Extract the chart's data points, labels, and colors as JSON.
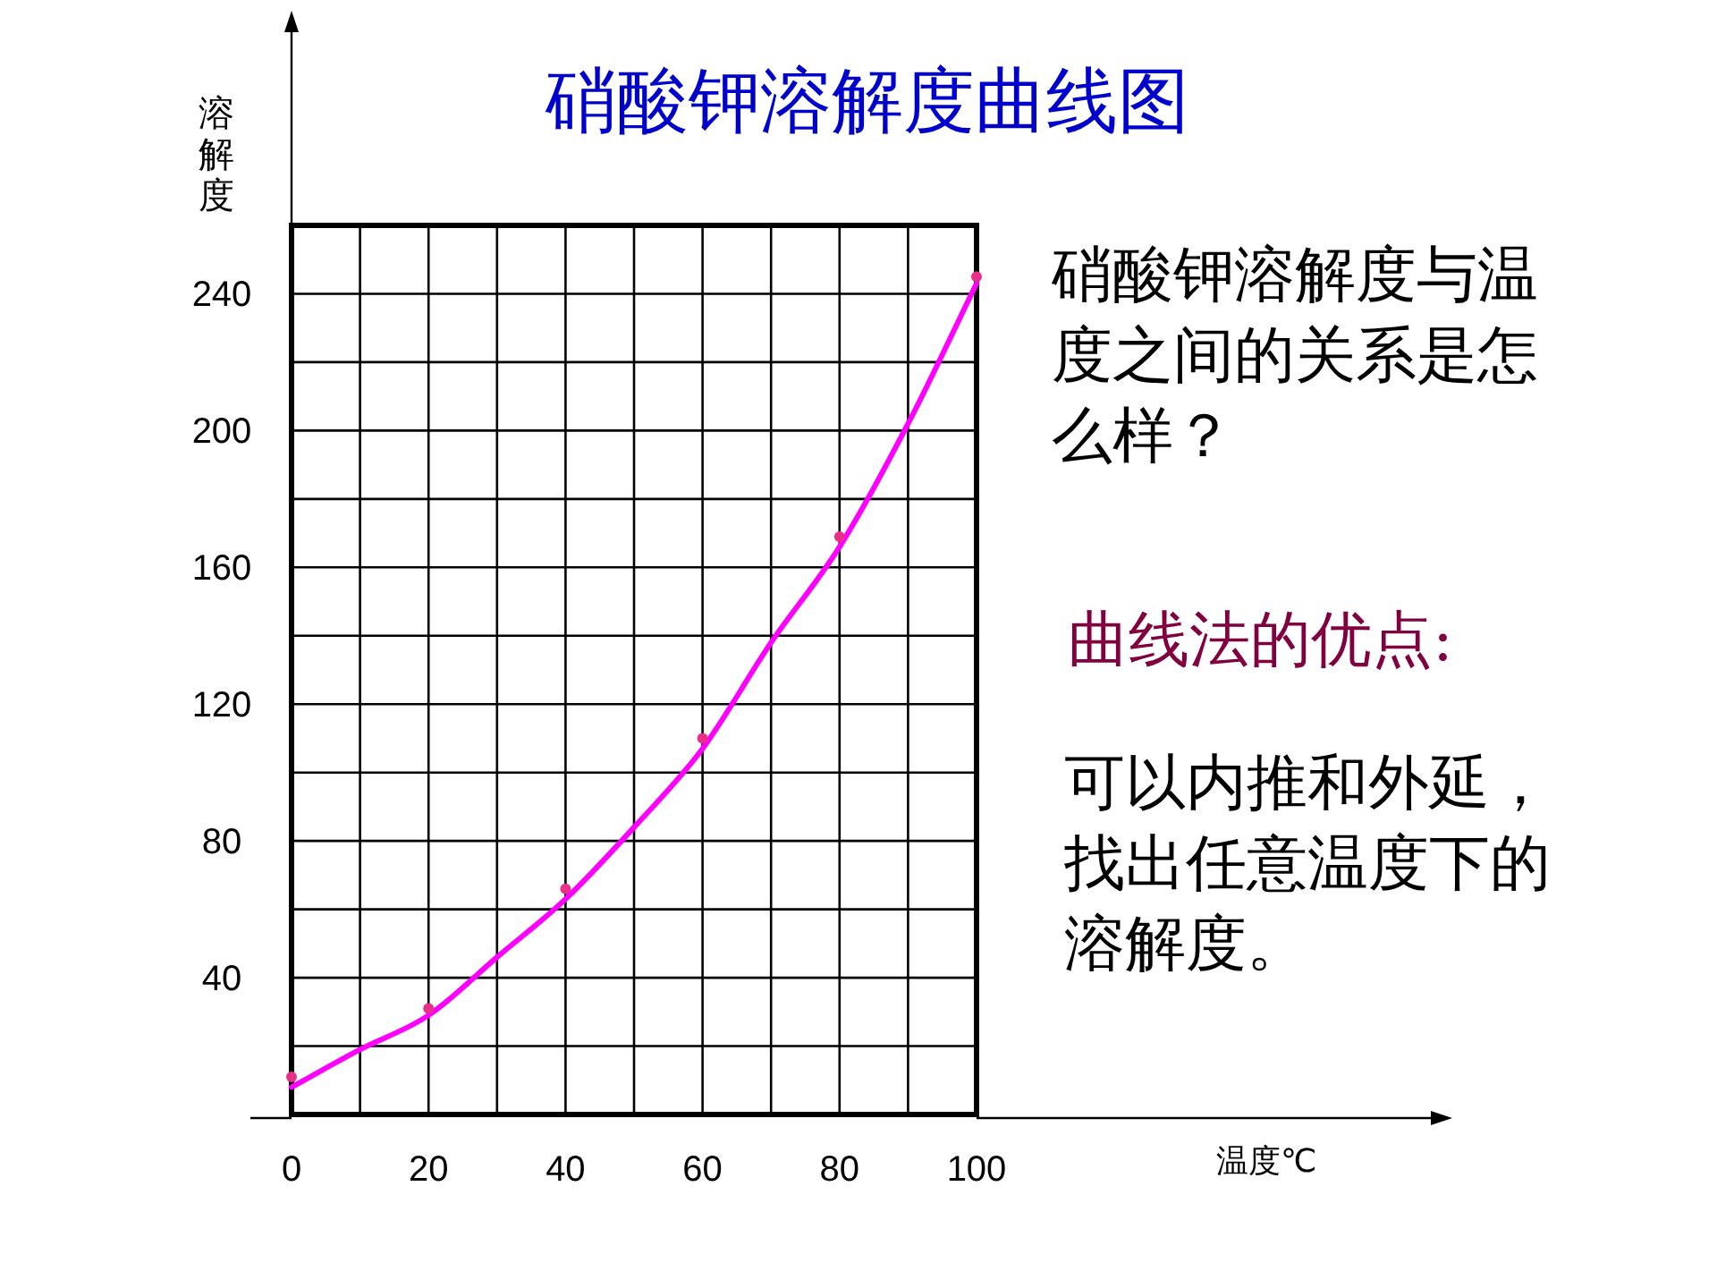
{
  "chart_data": {
    "type": "line",
    "title": "硝酸钾溶解度曲线图",
    "ylabel": "溶解度",
    "xlim": [
      0,
      100
    ],
    "ylim": [
      0,
      260
    ],
    "xticks": [
      0,
      {
        "value": 10,
        "label": null
      },
      20,
      {
        "value": 30,
        "label": null
      },
      40,
      {
        "value": 50,
        "label": null
      },
      60,
      {
        "value": 70,
        "label": null
      },
      80,
      {
        "value": 90,
        "label": null
      },
      100
    ],
    "yticks": [
      {
        "value": 20,
        "label": null
      },
      40,
      {
        "value": 60,
        "label": null
      },
      80,
      {
        "value": 100,
        "label": null
      },
      120,
      {
        "value": 140,
        "label": null
      },
      160,
      {
        "value": 180,
        "label": null
      },
      200,
      {
        "value": 220,
        "label": null
      },
      240,
      {
        "value": 260,
        "label": null
      }
    ],
    "grid": true,
    "series": [
      {
        "type": "line",
        "color": "#ff00ff",
        "line_style": "solid",
        "x": [
          0,
          10,
          20,
          30,
          40,
          50,
          60,
          70,
          80,
          90,
          100
        ],
        "values": [
          8,
          19,
          29,
          46,
          63,
          84,
          107,
          138,
          166,
          202,
          243
        ]
      },
      {
        "type": "scatter",
        "color": "#e8308a",
        "marker": "circle",
        "x": [
          0,
          20,
          40,
          60,
          80,
          100
        ],
        "values": [
          11,
          31,
          66,
          110,
          169,
          245
        ]
      }
    ],
    "annotations": [
      "硝酸钾溶解度与温度之间的关系是怎么样？",
      "曲线法的优点:",
      "可以内推和外延，找出任意温度下的溶解度。",
      "温度℃"
    ]
  }
}
